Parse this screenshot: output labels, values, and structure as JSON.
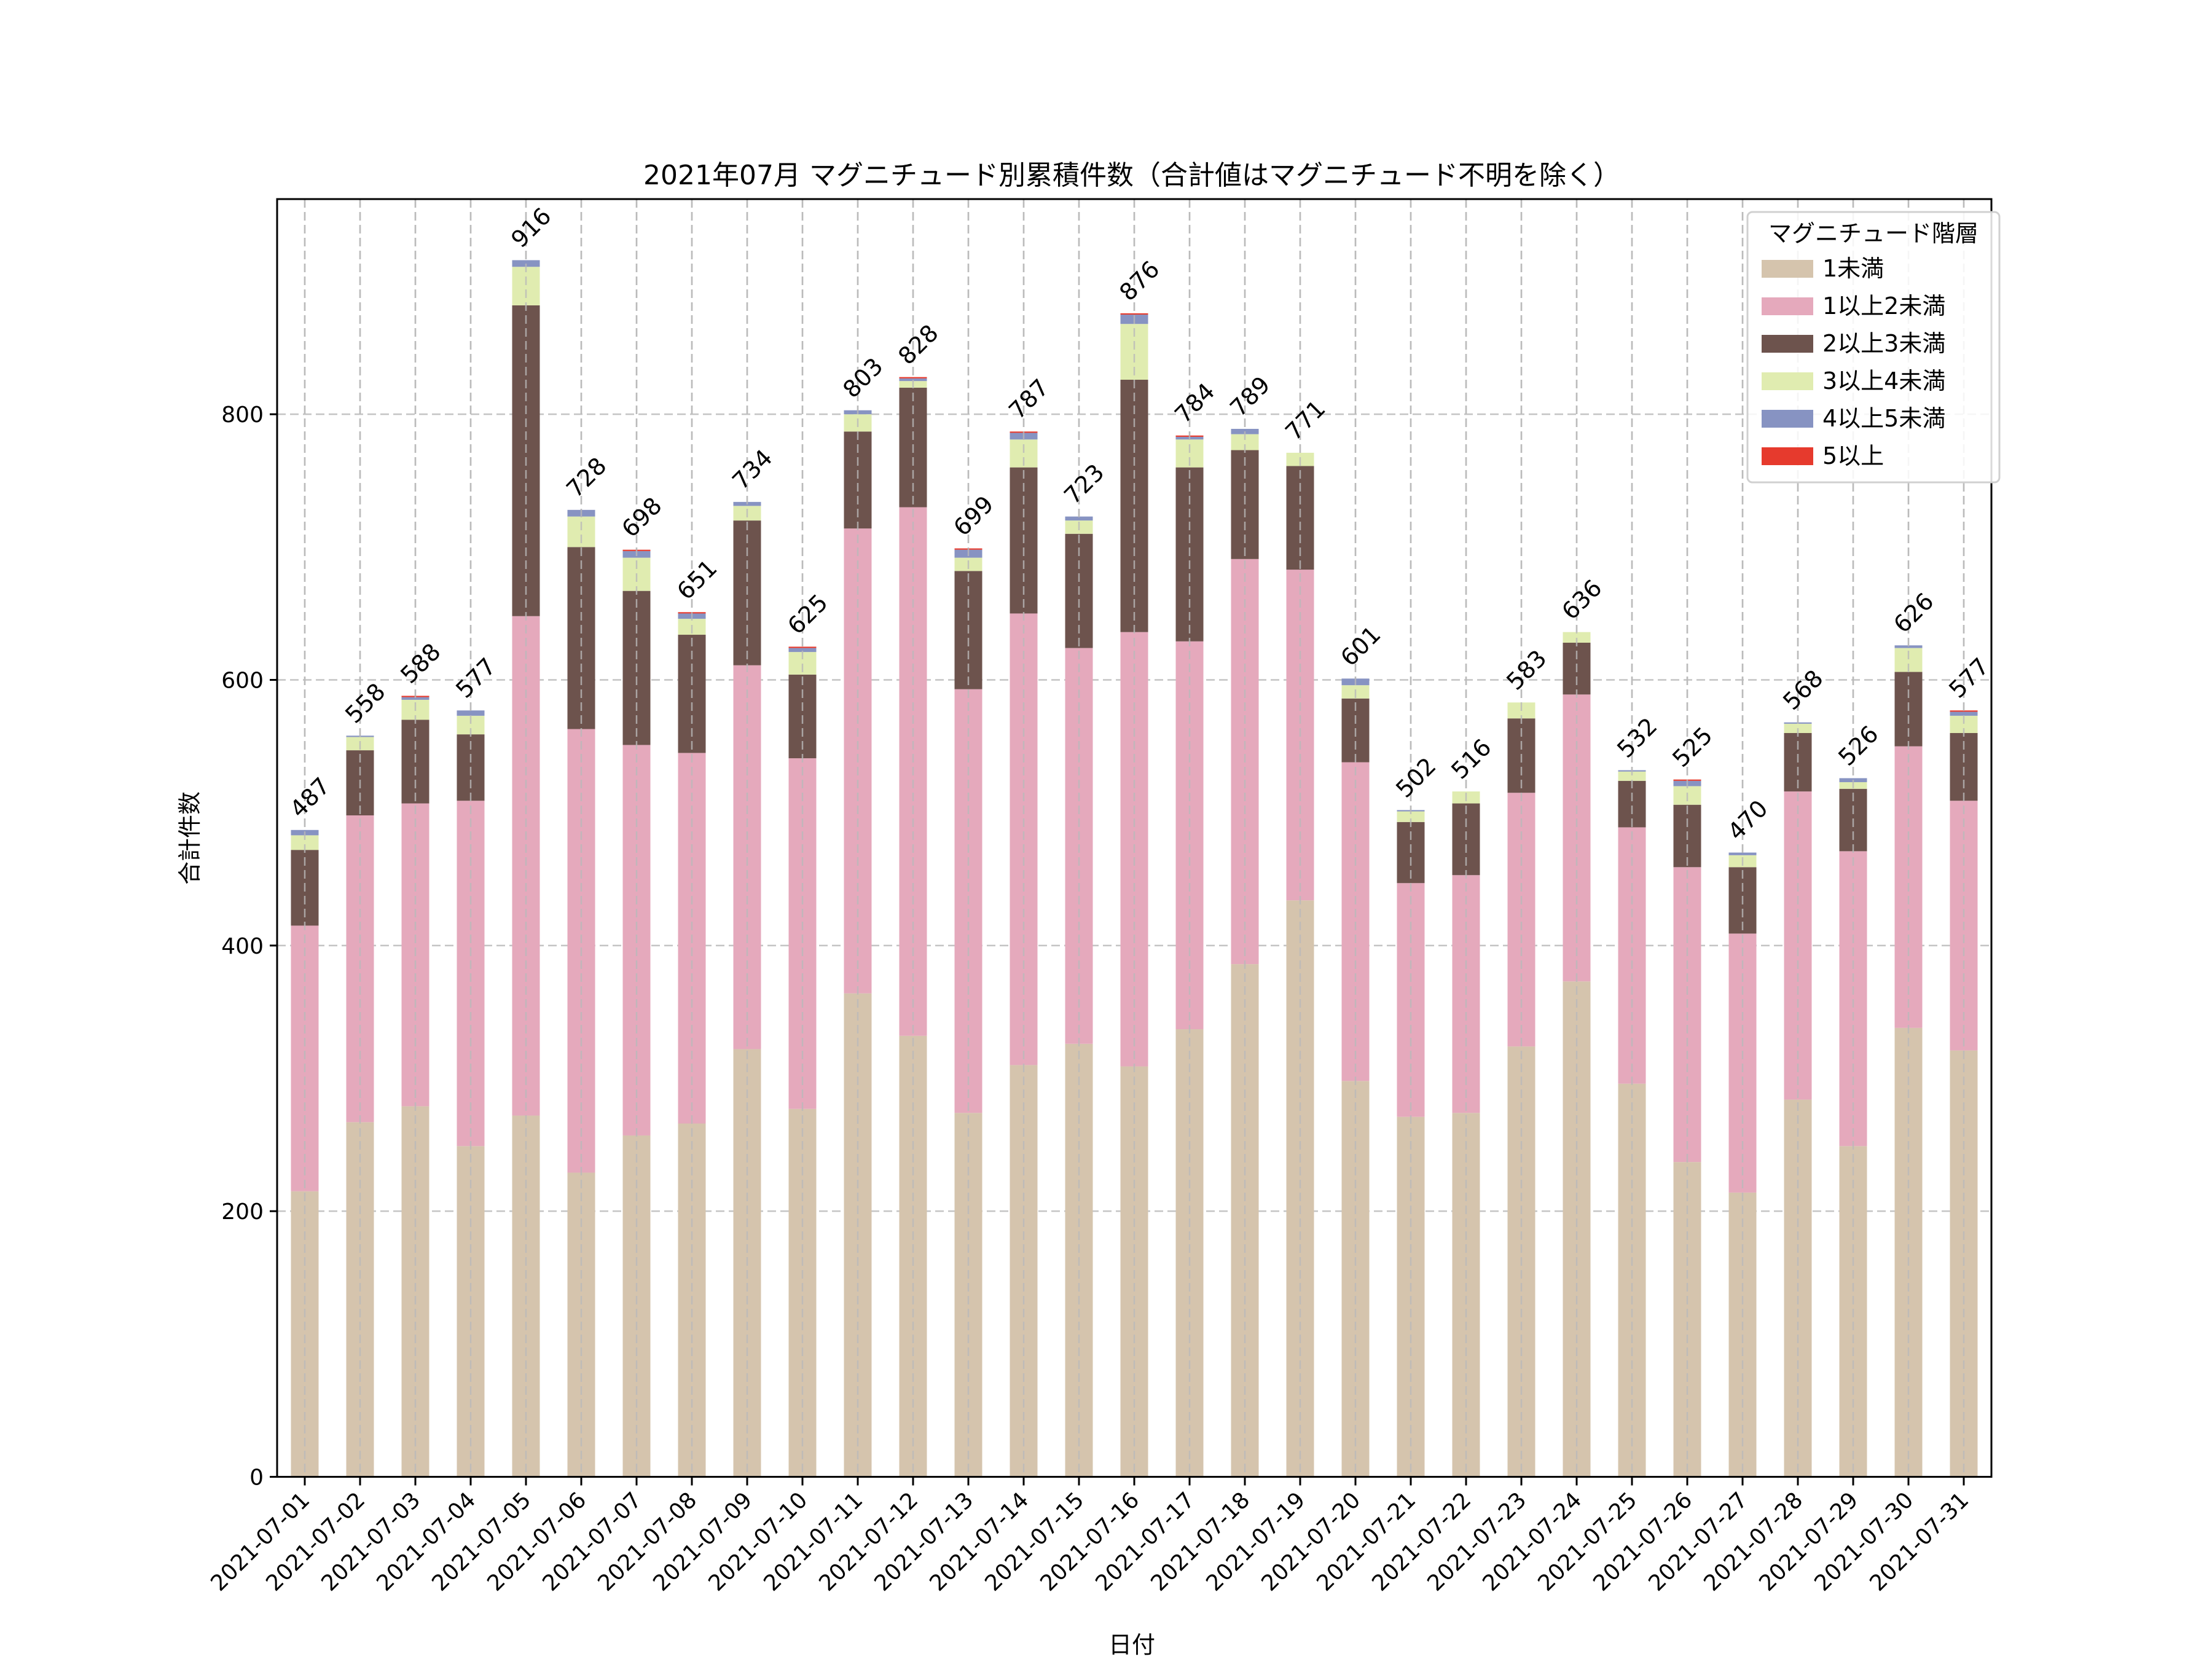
{
  "chart_data": {
    "type": "bar",
    "stacked": true,
    "title": "2021年07月 マグニチュード別累積件数（合計値はマグニチュード不明を除く）",
    "xlabel": "日付",
    "ylabel": "合計件数",
    "ylim": [
      0,
      962
    ],
    "yticks": [
      0,
      200,
      400,
      600,
      800
    ],
    "grid": true,
    "legend": {
      "title": "マグニチュード階層",
      "placement": "top-right"
    },
    "categories": [
      "2021-07-01",
      "2021-07-02",
      "2021-07-03",
      "2021-07-04",
      "2021-07-05",
      "2021-07-06",
      "2021-07-07",
      "2021-07-08",
      "2021-07-09",
      "2021-07-10",
      "2021-07-11",
      "2021-07-12",
      "2021-07-13",
      "2021-07-14",
      "2021-07-15",
      "2021-07-16",
      "2021-07-17",
      "2021-07-18",
      "2021-07-19",
      "2021-07-20",
      "2021-07-21",
      "2021-07-22",
      "2021-07-23",
      "2021-07-24",
      "2021-07-25",
      "2021-07-26",
      "2021-07-27",
      "2021-07-28",
      "2021-07-29",
      "2021-07-30",
      "2021-07-31"
    ],
    "series": [
      {
        "name": "1未満",
        "color": "#d5c4ad",
        "values": [
          215,
          267,
          279,
          249,
          272,
          229,
          257,
          266,
          322,
          277,
          364,
          332,
          274,
          310,
          326,
          309,
          337,
          386,
          434,
          298,
          271,
          274,
          324,
          373,
          296,
          237,
          214,
          284,
          249,
          338,
          321
        ]
      },
      {
        "name": "1以上2未満",
        "color": "#e5a9bc",
        "values": [
          200,
          231,
          228,
          260,
          376,
          334,
          294,
          279,
          289,
          264,
          350,
          398,
          319,
          340,
          298,
          327,
          292,
          305,
          249,
          240,
          176,
          179,
          191,
          216,
          193,
          222,
          195,
          232,
          222,
          212,
          188
        ]
      },
      {
        "name": "2以上3未満",
        "color": "#6d534d",
        "values": [
          57,
          49,
          63,
          50,
          234,
          137,
          116,
          89,
          109,
          63,
          73,
          90,
          89,
          110,
          86,
          190,
          131,
          82,
          78,
          48,
          46,
          54,
          56,
          39,
          35,
          47,
          50,
          44,
          47,
          56,
          51
        ]
      },
      {
        "name": "3以上4未満",
        "color": "#e0ecb0",
        "values": [
          11,
          10,
          15,
          14,
          29,
          23,
          25,
          12,
          11,
          17,
          13,
          5,
          10,
          21,
          10,
          42,
          21,
          12,
          10,
          10,
          8,
          9,
          12,
          8,
          7,
          14,
          9,
          7,
          5,
          18,
          13
        ]
      },
      {
        "name": "4以上5未満",
        "color": "#8793c2",
        "values": [
          4,
          1,
          2,
          4,
          5,
          5,
          5,
          4,
          3,
          3,
          3,
          2,
          6,
          5,
          3,
          7,
          2,
          4,
          0,
          5,
          1,
          0,
          0,
          0,
          1,
          4,
          2,
          1,
          3,
          2,
          3
        ]
      },
      {
        "name": "5以上",
        "color": "#e63a2d",
        "values": [
          0,
          0,
          1,
          0,
          0,
          0,
          1,
          1,
          0,
          1,
          0,
          1,
          1,
          1,
          0,
          1,
          1,
          0,
          0,
          0,
          0,
          0,
          0,
          0,
          0,
          1,
          0,
          0,
          0,
          0,
          1
        ]
      }
    ],
    "totals": [
      487,
      558,
      588,
      577,
      916,
      728,
      698,
      651,
      734,
      625,
      803,
      828,
      699,
      787,
      723,
      876,
      784,
      789,
      771,
      601,
      502,
      516,
      583,
      636,
      532,
      525,
      470,
      568,
      526,
      626,
      577
    ]
  }
}
